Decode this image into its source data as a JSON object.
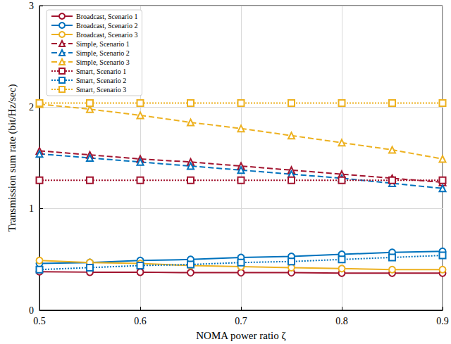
{
  "chart_data": {
    "type": "line",
    "x_label": "NOMA power ratio ζ",
    "y_label": "Transmission sum rate (bit/Hz/sec)",
    "x": [
      0.5,
      0.55,
      0.6,
      0.65,
      0.7,
      0.75,
      0.8,
      0.85,
      0.9
    ],
    "xlim": [
      0.5,
      0.9
    ],
    "xticks": [
      0.5,
      0.6,
      0.7,
      0.8,
      0.9
    ],
    "ylim": [
      0,
      3
    ],
    "yticks": [
      0,
      1,
      2,
      3
    ],
    "grid": true,
    "legend": "upper left",
    "series": [
      {
        "name": "Broadcast, Scenario 1",
        "color": "#a2142f",
        "marker": "circle",
        "line_style": "solid",
        "values": [
          0.38,
          0.375,
          0.375,
          0.37,
          0.37,
          0.37,
          0.365,
          0.365,
          0.365
        ]
      },
      {
        "name": "Broadcast, Scenario 2",
        "color": "#0072bd",
        "marker": "circle",
        "line_style": "solid",
        "values": [
          0.46,
          0.47,
          0.49,
          0.5,
          0.52,
          0.53,
          0.55,
          0.57,
          0.58
        ]
      },
      {
        "name": "Broadcast, Scenario 3",
        "color": "#edb120",
        "marker": "circle",
        "line_style": "solid",
        "values": [
          0.49,
          0.47,
          0.46,
          0.44,
          0.43,
          0.42,
          0.41,
          0.4,
          0.4
        ]
      },
      {
        "name": "Simple, Scenario 1",
        "color": "#a2142f",
        "marker": "triangle",
        "line_style": "dashed",
        "values": [
          1.57,
          1.53,
          1.49,
          1.46,
          1.42,
          1.38,
          1.34,
          1.3,
          1.26
        ]
      },
      {
        "name": "Simple, Scenario 2",
        "color": "#0072bd",
        "marker": "triangle",
        "line_style": "dashed",
        "values": [
          1.54,
          1.5,
          1.46,
          1.42,
          1.38,
          1.34,
          1.3,
          1.25,
          1.2
        ]
      },
      {
        "name": "Simple, Scenario 3",
        "color": "#edb120",
        "marker": "triangle",
        "line_style": "dashed",
        "values": [
          2.03,
          1.98,
          1.92,
          1.85,
          1.79,
          1.72,
          1.65,
          1.58,
          1.49
        ]
      },
      {
        "name": "Smart, Scenario 1",
        "color": "#a2142f",
        "marker": "square",
        "line_style": "dotted",
        "values": [
          1.28,
          1.28,
          1.28,
          1.28,
          1.28,
          1.28,
          1.28,
          1.28,
          1.28
        ]
      },
      {
        "name": "Smart, Scenario 2",
        "color": "#0072bd",
        "marker": "square",
        "line_style": "dotted",
        "values": [
          0.4,
          0.42,
          0.44,
          0.45,
          0.47,
          0.48,
          0.5,
          0.52,
          0.54
        ]
      },
      {
        "name": "Smart, Scenario 3",
        "color": "#edb120",
        "marker": "square",
        "line_style": "dotted",
        "values": [
          2.04,
          2.04,
          2.04,
          2.04,
          2.04,
          2.04,
          2.04,
          2.04,
          2.04
        ]
      }
    ]
  }
}
